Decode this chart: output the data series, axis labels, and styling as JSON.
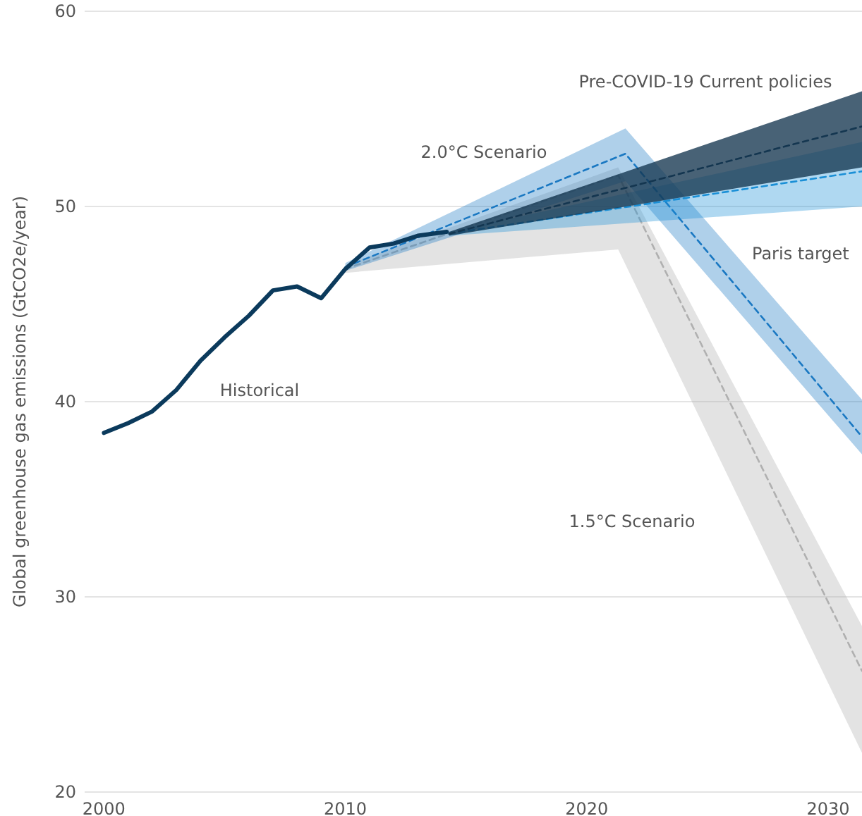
{
  "chart_data": {
    "type": "line",
    "ylabel": "Global greenhouse gas emissions (GtCO2e/year)",
    "xlim": [
      1999.2,
      2031.4
    ],
    "xticks": [
      2000,
      2010,
      2020,
      2030
    ],
    "ylim": [
      20,
      60
    ],
    "yticks": [
      20,
      30,
      40,
      50,
      60
    ],
    "grid": "y",
    "series": [
      {
        "color": "#b0b0b0",
        "line_style": "dashed",
        "x": [
          2010,
          2021.3,
          2031.4
        ],
        "values": [
          46.8,
          51.6,
          26.2
        ],
        "lower": [
          46.6,
          47.8,
          22.0
        ],
        "upper": [
          47.0,
          52.0,
          28.5
        ]
      },
      {
        "color": "#1a78c2",
        "line_style": "dashed",
        "x": [
          2010,
          2021.6,
          2031.4
        ],
        "values": [
          46.9,
          52.7,
          38.2
        ],
        "lower": [
          46.7,
          51.3,
          37.3
        ],
        "upper": [
          47.1,
          54.0,
          40.1
        ]
      },
      {
        "color": "#1a8fd6",
        "line_style": "dashed",
        "x": [
          2014.3,
          2031.4
        ],
        "values": [
          48.6,
          51.8
        ],
        "lower": [
          48.5,
          50.0
        ],
        "upper": [
          48.7,
          53.3
        ]
      },
      {
        "color": "#143650",
        "line_style": "dashed",
        "x": [
          2014.3,
          2031.4
        ],
        "values": [
          48.6,
          54.1
        ],
        "lower": [
          48.5,
          52.0
        ],
        "upper": [
          48.7,
          55.9
        ]
      },
      {
        "color": "#0b3a5c",
        "line_style": "solid",
        "x": [
          2000,
          2001,
          2002,
          2003,
          2004,
          2005,
          2006,
          2007,
          2008,
          2009,
          2010,
          2011,
          2012,
          2013,
          2014.2
        ],
        "values": [
          38.4,
          38.9,
          39.5,
          40.6,
          42.1,
          43.3,
          44.4,
          45.7,
          45.9,
          45.3,
          46.8,
          47.9,
          48.1,
          48.5,
          48.7
        ]
      }
    ],
    "annotations": [
      "Pre-COVID-19 Current policies",
      "2.0°C Scenario",
      "Paris target",
      "Historical",
      "1.5°C Scenario"
    ]
  }
}
